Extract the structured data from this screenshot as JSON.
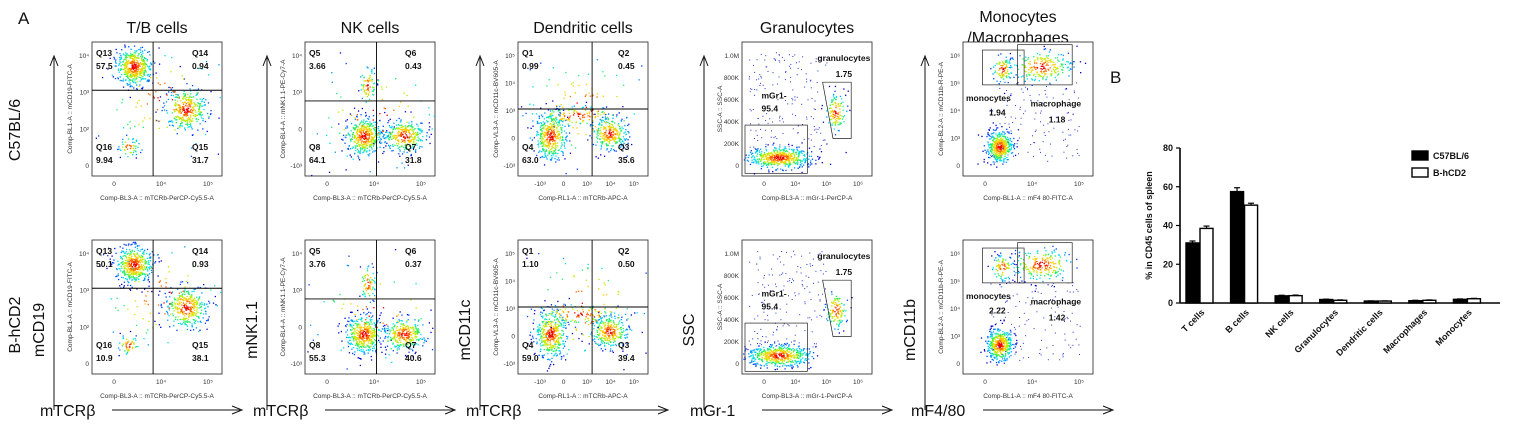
{
  "panel_labels": [
    "A",
    "B"
  ],
  "row_labels": [
    "C57BL/6",
    "B-hCD2"
  ],
  "columns": [
    {
      "title": [
        "T/B cells"
      ],
      "y_marker": "mCD19",
      "x_marker": "mTCRβ",
      "y_channel": "Comp-BL1-A :: mCD19-FITC-A",
      "x_channel": "Comp-BL3-A :: mTCRb-PerCP-Cy5.5-A",
      "y_ticks": [
        "10⁴",
        "10³",
        "10²",
        "0"
      ],
      "x_ticks": [
        "0",
        "10⁴",
        "10⁵"
      ],
      "type": "quad",
      "rows": [
        {
          "quads": [
            {
              "name": "Q13",
              "value": "57.5"
            },
            {
              "name": "Q14",
              "value": "0.94"
            },
            {
              "name": "Q16",
              "value": "9.94"
            },
            {
              "name": "Q15",
              "value": "31.7"
            }
          ]
        },
        {
          "quads": [
            {
              "name": "Q13",
              "value": "50.1"
            },
            {
              "name": "Q14",
              "value": "0.93"
            },
            {
              "name": "Q16",
              "value": "10.9"
            },
            {
              "name": "Q15",
              "value": "38.1"
            }
          ]
        }
      ]
    },
    {
      "title": [
        "NK cells"
      ],
      "y_marker": "mNK1.1",
      "x_marker": "mTCRβ",
      "y_channel": "Comp-BL4-A :: mNK1.1-PE-Cy7-A",
      "x_channel": "Comp-BL3-A :: mTCRb-PerCP-Cy5.5-A",
      "y_ticks": [
        "10⁴",
        "10³",
        "0",
        "-10³"
      ],
      "x_ticks": [
        "0",
        "10⁴",
        "10⁵"
      ],
      "type": "quad",
      "rows": [
        {
          "quads": [
            {
              "name": "Q5",
              "value": "3.66"
            },
            {
              "name": "Q6",
              "value": "0.43"
            },
            {
              "name": "Q8",
              "value": "64.1"
            },
            {
              "name": "Q7",
              "value": "31.8"
            }
          ]
        },
        {
          "quads": [
            {
              "name": "Q5",
              "value": "3.76"
            },
            {
              "name": "Q6",
              "value": "0.37"
            },
            {
              "name": "Q8",
              "value": "55.3"
            },
            {
              "name": "Q7",
              "value": "40.6"
            }
          ]
        }
      ]
    },
    {
      "title": [
        "Dendritic cells"
      ],
      "y_marker": "mCD11c",
      "x_marker": "mTCRβ",
      "y_channel": "Comp-VL3-A :: mCD11c-BV605-A",
      "x_channel": "Comp-RL1-A :: mTCRb-APC-A",
      "y_ticks": [
        "10⁵",
        "10⁴",
        "10³",
        "0",
        "-10³"
      ],
      "x_ticks": [
        "-10³",
        "0",
        "10³",
        "10⁴",
        "10⁵"
      ],
      "type": "quad",
      "rows": [
        {
          "quads": [
            {
              "name": "Q1",
              "value": "0.99"
            },
            {
              "name": "Q2",
              "value": "0.45"
            },
            {
              "name": "Q4",
              "value": "63.0"
            },
            {
              "name": "Q3",
              "value": "35.6"
            }
          ]
        },
        {
          "quads": [
            {
              "name": "Q1",
              "value": "1.10"
            },
            {
              "name": "Q2",
              "value": "0.50"
            },
            {
              "name": "Q4",
              "value": "59.0"
            },
            {
              "name": "Q3",
              "value": "39.4"
            }
          ]
        }
      ]
    },
    {
      "title": [
        "Granulocytes"
      ],
      "y_marker": "SSC",
      "x_marker": "mGr-1",
      "y_channel": "SSC-A :: SSC-A",
      "x_channel": "Comp-BL3-A :: mGr-1-PerCP-A",
      "y_ticks": [
        "1.0M",
        "800K",
        "600K",
        "400K",
        "200K",
        "0"
      ],
      "x_ticks": [
        "0",
        "10⁴",
        "10⁵",
        "10⁶"
      ],
      "type": "gran",
      "rows": [
        {
          "gates": [
            {
              "name": "granulocytes",
              "value": "1.75"
            },
            {
              "name": "mGr1-",
              "value": "95.4"
            }
          ]
        },
        {
          "gates": [
            {
              "name": "granulocytes",
              "value": "1.75"
            },
            {
              "name": "mGr1-",
              "value": "95.4"
            }
          ]
        }
      ]
    },
    {
      "title": [
        "Monocytes",
        "/Macrophages"
      ],
      "y_marker": "mCD11b",
      "x_marker": "mF4/80",
      "y_channel": "Comp-BL2-A :: mCD11b-R-PE-A",
      "x_channel": "Comp-BL1-A :: mF4 80-FITC-A",
      "y_ticks": [
        "10⁶",
        "10⁵",
        "10⁴",
        "10³",
        "0"
      ],
      "x_ticks": [
        "0",
        "10⁴",
        "10⁵"
      ],
      "type": "mono",
      "rows": [
        {
          "gates": [
            {
              "name": "monocytes",
              "value": "1.94"
            },
            {
              "name": "macrophage",
              "value": "1.18"
            }
          ]
        },
        {
          "gates": [
            {
              "name": "monocytes",
              "value": "2.22"
            },
            {
              "name": "macrophage",
              "value": "1.42"
            }
          ]
        }
      ]
    }
  ],
  "chart_data": {
    "type": "bar",
    "ylabel": "% in CD45 cells of spleen",
    "ylim": [
      0,
      80
    ],
    "yticks": [
      "0",
      "20",
      "40",
      "60",
      "80"
    ],
    "categories": [
      "T cells",
      "B cells",
      "NK cells",
      "Granulocytes",
      "Dendritic cells",
      "Macrophages",
      "Monocytes"
    ],
    "series": [
      {
        "name": "C57BL/6",
        "fill": "#000000",
        "values": [
          31,
          57.5,
          3.7,
          1.8,
          1.0,
          1.2,
          1.9
        ],
        "errors": [
          1.0,
          2.0,
          0.3,
          0.2,
          0.1,
          0.2,
          0.2
        ]
      },
      {
        "name": "B-hCD2",
        "fill": "#ffffff",
        "values": [
          38.5,
          50.5,
          3.8,
          1.4,
          1.0,
          1.4,
          2.2
        ],
        "errors": [
          1.2,
          1.0,
          0.3,
          0.2,
          0.1,
          0.2,
          0.2
        ]
      }
    ],
    "legend_position": "top-right"
  }
}
